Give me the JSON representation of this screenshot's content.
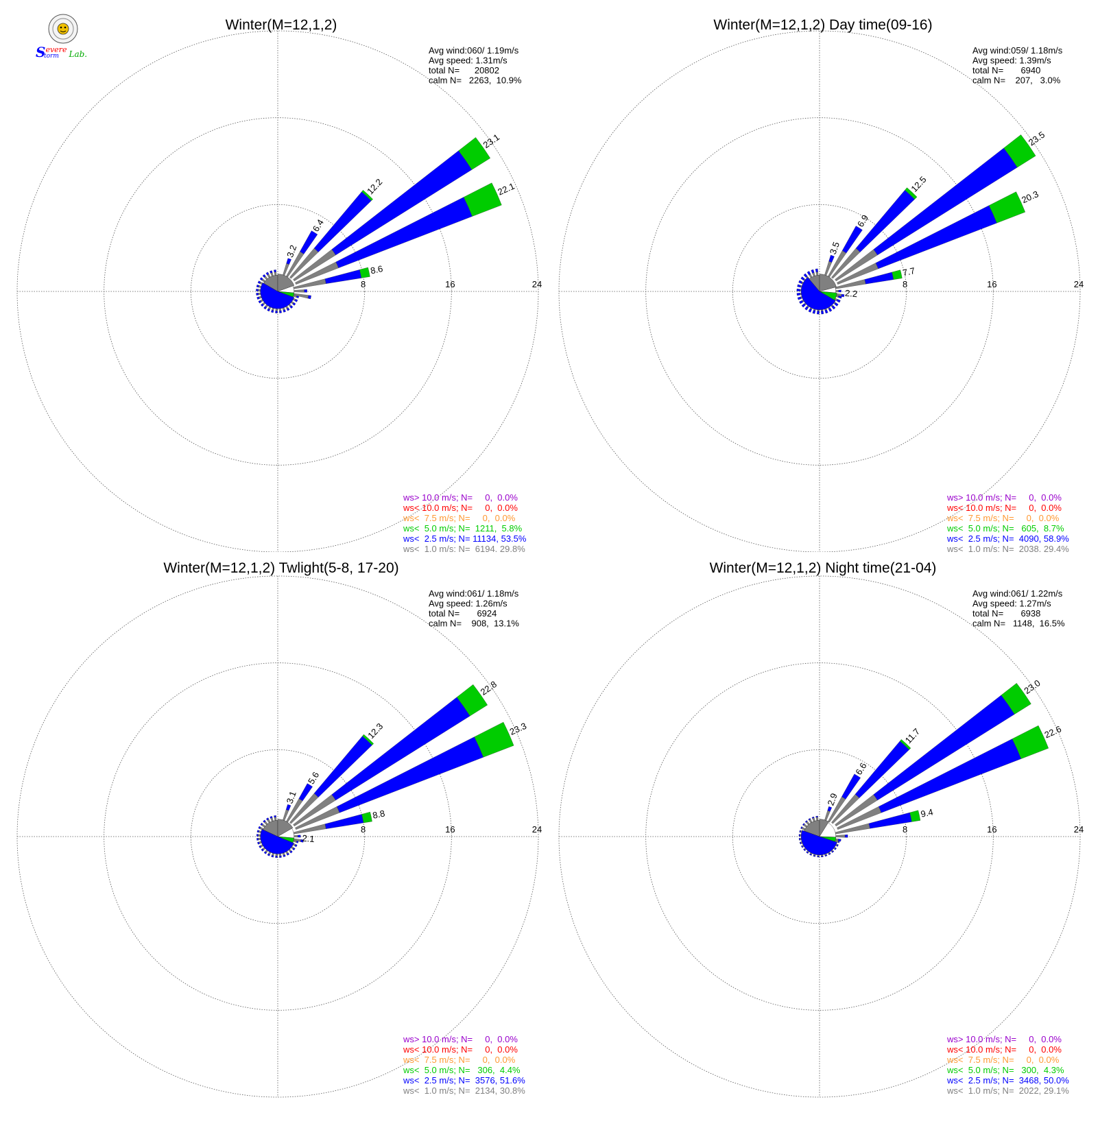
{
  "logo": {
    "text_s": "S",
    "text_evere": "evere",
    "text_torm": "torm",
    "text_lab": "Lab."
  },
  "colors": {
    "purple": "#9900cc",
    "red": "#ff0000",
    "orange": "#ff9933",
    "green": "#00cc00",
    "blue": "#0000ff",
    "gray": "#808080",
    "calm_white": "#ffffff"
  },
  "chart_data": [
    {
      "type": "polar-bar",
      "title": "Winter(M=12,1,2)",
      "stats": [
        "Avg wind:060/ 1.19m/s",
        "Avg speed: 1.31m/s",
        "total N=      20802",
        "calm N=   2263,  10.9%"
      ],
      "ring_labels": [
        "8",
        "16",
        "24"
      ],
      "rmax": 24,
      "petal_labels": [
        {
          "dir": 20,
          "text": "3.2"
        },
        {
          "dir": 32,
          "text": "6.4"
        },
        {
          "dir": 43,
          "text": "12.2"
        },
        {
          "dir": 55,
          "text": "23.1"
        },
        {
          "dir": 66,
          "text": "22.1"
        },
        {
          "dir": 78,
          "text": "8.6"
        }
      ],
      "petals": [
        {
          "dir": 20,
          "total": 3.2,
          "calm": 1.5,
          "lt1": 1.2,
          "lt25": 0.5,
          "lt5": 0.0
        },
        {
          "dir": 32,
          "total": 6.4,
          "calm": 1.6,
          "lt1": 2.6,
          "lt25": 2.2,
          "lt5": 0.0
        },
        {
          "dir": 43,
          "total": 12.2,
          "calm": 1.7,
          "lt1": 3.5,
          "lt25": 6.8,
          "lt5": 0.2
        },
        {
          "dir": 55,
          "total": 23.1,
          "calm": 1.8,
          "lt1": 4.5,
          "lt25": 14.8,
          "lt5": 2.0
        },
        {
          "dir": 66,
          "total": 22.1,
          "calm": 1.8,
          "lt1": 4.2,
          "lt25": 13.2,
          "lt5": 2.9
        },
        {
          "dir": 78,
          "total": 8.6,
          "calm": 1.5,
          "lt1": 3.0,
          "lt25": 3.3,
          "lt5": 0.8
        },
        {
          "dir": 89,
          "total": 2.7,
          "calm": 0.0,
          "lt1": 0.0,
          "lt25": 0.0,
          "lt5": 0.0
        },
        {
          "dir": 100,
          "total": 3.1,
          "calm": 0.0,
          "lt1": 0.0,
          "lt25": 0.0,
          "lt5": 0.0
        }
      ],
      "background_fan": {
        "dir_from": 105,
        "dir_to": 355,
        "step": 11.25,
        "lt1": 0.3,
        "lt25": 0.2
      },
      "inner_pie": [
        {
          "from": 300,
          "to": 360,
          "r": 1.5,
          "color": "gray"
        },
        {
          "from": 0,
          "to": 70,
          "r": 1.6,
          "color": "gray"
        },
        {
          "from": 70,
          "to": 95,
          "r": 1.5,
          "color": "calm_white"
        },
        {
          "from": 95,
          "to": 110,
          "r": 1.5,
          "color": "green"
        },
        {
          "from": 110,
          "to": 300,
          "r": 1.6,
          "color": "blue"
        }
      ],
      "legend": [
        {
          "text": "ws> 10.0 m/s; N=     0,  0.0%",
          "color": "purple"
        },
        {
          "text": "ws< 10.0 m/s; N=     0,  0.0%",
          "color": "red"
        },
        {
          "text": "ws<  7.5 m/s; N=     0,  0.0%",
          "color": "orange"
        },
        {
          "text": "ws<  5.0 m/s; N=  1211,  5.8%",
          "color": "green"
        },
        {
          "text": "ws<  2.5 m/s; N= 11134, 53.5%",
          "color": "blue"
        },
        {
          "text": "ws<  1.0 m/s; N=  6194, 29.8%",
          "color": "gray"
        }
      ]
    },
    {
      "type": "polar-bar",
      "title": "Winter(M=12,1,2) Day time(09-16)",
      "stats": [
        "Avg wind:059/ 1.18m/s",
        "Avg speed: 1.39m/s",
        "total N=       6940",
        "calm N=    207,   3.0%"
      ],
      "ring_labels": [
        "8",
        "16",
        "24"
      ],
      "rmax": 24,
      "petal_labels": [
        {
          "dir": 20,
          "text": "3.5"
        },
        {
          "dir": 32,
          "text": "6.9"
        },
        {
          "dir": 43,
          "text": "12.5"
        },
        {
          "dir": 55,
          "text": "23.5"
        },
        {
          "dir": 66,
          "text": "20.3"
        },
        {
          "dir": 78,
          "text": "7.7"
        },
        {
          "dir": 95,
          "text": "2.2"
        }
      ],
      "petals": [
        {
          "dir": 20,
          "total": 3.5,
          "calm": 1.5,
          "lt1": 1.4,
          "lt25": 0.6,
          "lt5": 0.0
        },
        {
          "dir": 32,
          "total": 6.9,
          "calm": 1.6,
          "lt1": 2.7,
          "lt25": 2.6,
          "lt5": 0.0
        },
        {
          "dir": 43,
          "total": 12.5,
          "calm": 1.7,
          "lt1": 3.5,
          "lt25": 7.0,
          "lt5": 0.3
        },
        {
          "dir": 55,
          "total": 23.5,
          "calm": 1.8,
          "lt1": 4.5,
          "lt25": 15.2,
          "lt5": 2.0
        },
        {
          "dir": 66,
          "total": 20.3,
          "calm": 1.8,
          "lt1": 4.0,
          "lt25": 11.7,
          "lt5": 2.8
        },
        {
          "dir": 78,
          "total": 7.7,
          "calm": 1.5,
          "lt1": 2.8,
          "lt25": 2.6,
          "lt5": 0.8
        },
        {
          "dir": 89,
          "total": 2.0,
          "calm": 0.0,
          "lt1": 0.0,
          "lt25": 0.0,
          "lt5": 0.0
        },
        {
          "dir": 100,
          "total": 2.3,
          "calm": 0.0,
          "lt1": 0.0,
          "lt25": 0.0,
          "lt5": 0.0
        }
      ],
      "background_fan": {
        "dir_from": 105,
        "dir_to": 355,
        "step": 11.25,
        "lt1": 0.3,
        "lt25": 0.3
      },
      "inner_pie": [
        {
          "from": 320,
          "to": 360,
          "r": 1.5,
          "color": "gray"
        },
        {
          "from": 0,
          "to": 75,
          "r": 1.6,
          "color": "gray"
        },
        {
          "from": 75,
          "to": 95,
          "r": 1.5,
          "color": "calm_white"
        },
        {
          "from": 95,
          "to": 120,
          "r": 1.6,
          "color": "green"
        },
        {
          "from": 120,
          "to": 320,
          "r": 1.7,
          "color": "blue"
        }
      ],
      "legend": [
        {
          "text": "ws> 10.0 m/s; N=     0,  0.0%",
          "color": "purple"
        },
        {
          "text": "ws< 10.0 m/s; N=     0,  0.0%",
          "color": "red"
        },
        {
          "text": "ws<  7.5 m/s; N=     0,  0.0%",
          "color": "orange"
        },
        {
          "text": "ws<  5.0 m/s; N=   605,  8.7%",
          "color": "green"
        },
        {
          "text": "ws<  2.5 m/s; N=  4090, 58.9%",
          "color": "blue"
        },
        {
          "text": "ws<  1.0 m/s; N=  2038, 29.4%",
          "color": "gray"
        }
      ]
    },
    {
      "type": "polar-bar",
      "title": "Winter(M=12,1,2) Twlight(5-8, 17-20)",
      "stats": [
        "Avg wind:061/ 1.18m/s",
        "Avg speed: 1.26m/s",
        "total N=       6924",
        "calm N=    908,  13.1%"
      ],
      "ring_labels": [
        "8",
        "16",
        "24"
      ],
      "rmax": 24,
      "petal_labels": [
        {
          "dir": 20,
          "text": "3.1"
        },
        {
          "dir": 32,
          "text": "5.6"
        },
        {
          "dir": 43,
          "text": "12.3"
        },
        {
          "dir": 55,
          "text": "22.8"
        },
        {
          "dir": 66,
          "text": "23.3"
        },
        {
          "dir": 78,
          "text": "8.8"
        },
        {
          "dir": 95,
          "text": "2.1"
        }
      ],
      "petals": [
        {
          "dir": 20,
          "total": 3.1,
          "calm": 1.5,
          "lt1": 1.1,
          "lt25": 0.5,
          "lt5": 0.0
        },
        {
          "dir": 32,
          "total": 5.6,
          "calm": 1.6,
          "lt1": 2.4,
          "lt25": 1.6,
          "lt5": 0.0
        },
        {
          "dir": 43,
          "total": 12.3,
          "calm": 1.7,
          "lt1": 3.5,
          "lt25": 6.9,
          "lt5": 0.2
        },
        {
          "dir": 55,
          "total": 22.8,
          "calm": 1.8,
          "lt1": 4.5,
          "lt25": 14.6,
          "lt5": 1.9
        },
        {
          "dir": 66,
          "total": 23.3,
          "calm": 1.8,
          "lt1": 4.3,
          "lt25": 14.2,
          "lt5": 3.0
        },
        {
          "dir": 78,
          "total": 8.8,
          "calm": 1.5,
          "lt1": 3.0,
          "lt25": 3.5,
          "lt5": 0.8
        },
        {
          "dir": 89,
          "total": 2.1,
          "calm": 0.0,
          "lt1": 0.0,
          "lt25": 0.0,
          "lt5": 0.0
        },
        {
          "dir": 100,
          "total": 2.4,
          "calm": 0.0,
          "lt1": 0.0,
          "lt25": 0.0,
          "lt5": 0.0
        }
      ],
      "background_fan": {
        "dir_from": 105,
        "dir_to": 355,
        "step": 11.25,
        "lt1": 0.3,
        "lt25": 0.15
      },
      "inner_pie": [
        {
          "from": 295,
          "to": 360,
          "r": 1.5,
          "color": "gray"
        },
        {
          "from": 0,
          "to": 60,
          "r": 1.6,
          "color": "gray"
        },
        {
          "from": 60,
          "to": 95,
          "r": 1.5,
          "color": "calm_white"
        },
        {
          "from": 95,
          "to": 112,
          "r": 1.5,
          "color": "green"
        },
        {
          "from": 112,
          "to": 295,
          "r": 1.6,
          "color": "blue"
        }
      ],
      "legend": [
        {
          "text": "ws> 10.0 m/s; N=     0,  0.0%",
          "color": "purple"
        },
        {
          "text": "ws< 10.0 m/s; N=     0,  0.0%",
          "color": "red"
        },
        {
          "text": "ws<  7.5 m/s; N=     0,  0.0%",
          "color": "orange"
        },
        {
          "text": "ws<  5.0 m/s; N=   306,  4.4%",
          "color": "green"
        },
        {
          "text": "ws<  2.5 m/s; N=  3576, 51.6%",
          "color": "blue"
        },
        {
          "text": "ws<  1.0 m/s; N=  2134, 30.8%",
          "color": "gray"
        }
      ]
    },
    {
      "type": "polar-bar",
      "title": "Winter(M=12,1,2) Night time(21-04)",
      "stats": [
        "Avg wind:061/ 1.22m/s",
        "Avg speed: 1.27m/s",
        "total N=       6938",
        "calm N=   1148,  16.5%"
      ],
      "ring_labels": [
        "8",
        "16",
        "24"
      ],
      "rmax": 24,
      "petal_labels": [
        {
          "dir": 20,
          "text": "2.9"
        },
        {
          "dir": 32,
          "text": "6.6"
        },
        {
          "dir": 43,
          "text": "11.7"
        },
        {
          "dir": 55,
          "text": "23.0"
        },
        {
          "dir": 66,
          "text": "22.6"
        },
        {
          "dir": 78,
          "text": "9.4"
        }
      ],
      "petals": [
        {
          "dir": 20,
          "total": 2.9,
          "calm": 1.5,
          "lt1": 1.0,
          "lt25": 0.4,
          "lt5": 0.0
        },
        {
          "dir": 32,
          "total": 6.6,
          "calm": 1.6,
          "lt1": 2.6,
          "lt25": 2.4,
          "lt5": 0.0
        },
        {
          "dir": 43,
          "total": 11.7,
          "calm": 1.7,
          "lt1": 3.4,
          "lt25": 6.4,
          "lt5": 0.2
        },
        {
          "dir": 55,
          "total": 23.0,
          "calm": 1.8,
          "lt1": 4.5,
          "lt25": 14.9,
          "lt5": 1.8
        },
        {
          "dir": 66,
          "total": 22.6,
          "calm": 1.8,
          "lt1": 4.3,
          "lt25": 13.8,
          "lt5": 2.7
        },
        {
          "dir": 78,
          "total": 9.4,
          "calm": 1.5,
          "lt1": 3.2,
          "lt25": 3.9,
          "lt5": 0.8
        },
        {
          "dir": 89,
          "total": 2.6,
          "calm": 0.0,
          "lt1": 0.0,
          "lt25": 0.0,
          "lt5": 0.0
        },
        {
          "dir": 100,
          "total": 2.0,
          "calm": 0.0,
          "lt1": 0.0,
          "lt25": 0.0,
          "lt5": 0.0
        }
      ],
      "background_fan": {
        "dir_from": 105,
        "dir_to": 355,
        "step": 11.25,
        "lt1": 0.3,
        "lt25": 0.1
      },
      "inner_pie": [
        {
          "from": 290,
          "to": 360,
          "r": 1.5,
          "color": "gray"
        },
        {
          "from": 0,
          "to": 32,
          "r": 1.6,
          "color": "gray"
        },
        {
          "from": 32,
          "to": 92,
          "r": 1.5,
          "color": "calm_white"
        },
        {
          "from": 92,
          "to": 108,
          "r": 1.5,
          "color": "green"
        },
        {
          "from": 108,
          "to": 290,
          "r": 1.7,
          "color": "blue"
        }
      ],
      "legend": [
        {
          "text": "ws> 10.0 m/s; N=     0,  0.0%",
          "color": "purple"
        },
        {
          "text": "ws< 10.0 m/s; N=     0,  0.0%",
          "color": "red"
        },
        {
          "text": "ws<  7.5 m/s; N=     0,  0.0%",
          "color": "orange"
        },
        {
          "text": "ws<  5.0 m/s; N=   300,  4.3%",
          "color": "green"
        },
        {
          "text": "ws<  2.5 m/s; N=  3468, 50.0%",
          "color": "blue"
        },
        {
          "text": "ws<  1.0 m/s; N=  2022, 29.1%",
          "color": "gray"
        }
      ]
    }
  ]
}
